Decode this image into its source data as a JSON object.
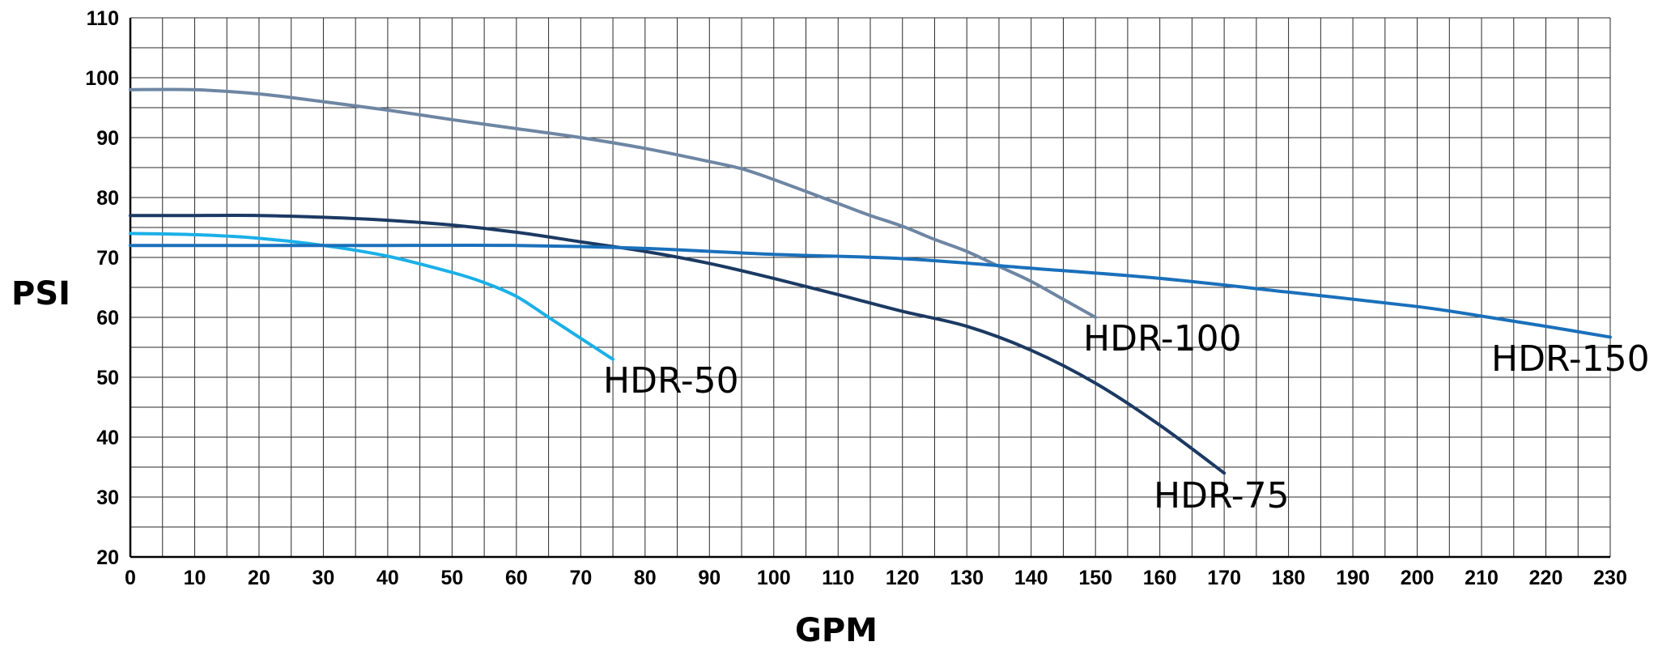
{
  "chart_data": {
    "type": "line",
    "xlabel": "GPM",
    "ylabel": "PSI",
    "xlim": [
      0,
      230
    ],
    "ylim": [
      20,
      110
    ],
    "x_ticks": [
      0,
      10,
      20,
      30,
      40,
      50,
      60,
      70,
      80,
      90,
      100,
      110,
      120,
      130,
      140,
      150,
      160,
      170,
      180,
      190,
      200,
      210,
      220,
      230
    ],
    "y_ticks": [
      20,
      30,
      40,
      50,
      60,
      70,
      80,
      90,
      100,
      110
    ],
    "x_minor_step": 5,
    "y_minor_step": 5,
    "grid": true,
    "series": [
      {
        "name": "HDR-50",
        "color": "#1ab0e8",
        "x": [
          0,
          10,
          20,
          30,
          40,
          50,
          55,
          60,
          65,
          70,
          75
        ],
        "y": [
          74,
          73.8,
          73.2,
          72,
          70.2,
          67.5,
          65.8,
          63.5,
          60,
          56.5,
          53
        ]
      },
      {
        "name": "HDR-75",
        "color": "#1b3a63",
        "x": [
          0,
          10,
          20,
          30,
          40,
          50,
          60,
          70,
          80,
          90,
          100,
          110,
          120,
          130,
          140,
          150,
          160,
          170
        ],
        "y": [
          77,
          77,
          77,
          76.7,
          76.2,
          75.4,
          74.2,
          72.6,
          71,
          69,
          66.5,
          63.8,
          61,
          58.5,
          54.5,
          49,
          42,
          34
        ]
      },
      {
        "name": "HDR-100",
        "color": "#6e86a3",
        "x": [
          0,
          10,
          20,
          30,
          40,
          50,
          60,
          70,
          80,
          90,
          95,
          100,
          110,
          115,
          120,
          125,
          130,
          135,
          140,
          145,
          150
        ],
        "y": [
          98,
          98,
          97.3,
          96,
          94.6,
          93,
          91.5,
          90,
          88.2,
          86,
          84.8,
          83,
          79,
          77,
          75.2,
          73,
          71,
          68.5,
          66,
          63,
          60
        ]
      },
      {
        "name": "HDR-150",
        "color": "#1a70bb",
        "x": [
          0,
          20,
          40,
          60,
          80,
          100,
          120,
          140,
          160,
          180,
          200,
          210,
          220,
          230
        ],
        "y": [
          72,
          72,
          72,
          72,
          71.5,
          70.5,
          69.8,
          68.2,
          66.5,
          64.2,
          61.8,
          60.2,
          58.5,
          56.7
        ]
      }
    ]
  }
}
